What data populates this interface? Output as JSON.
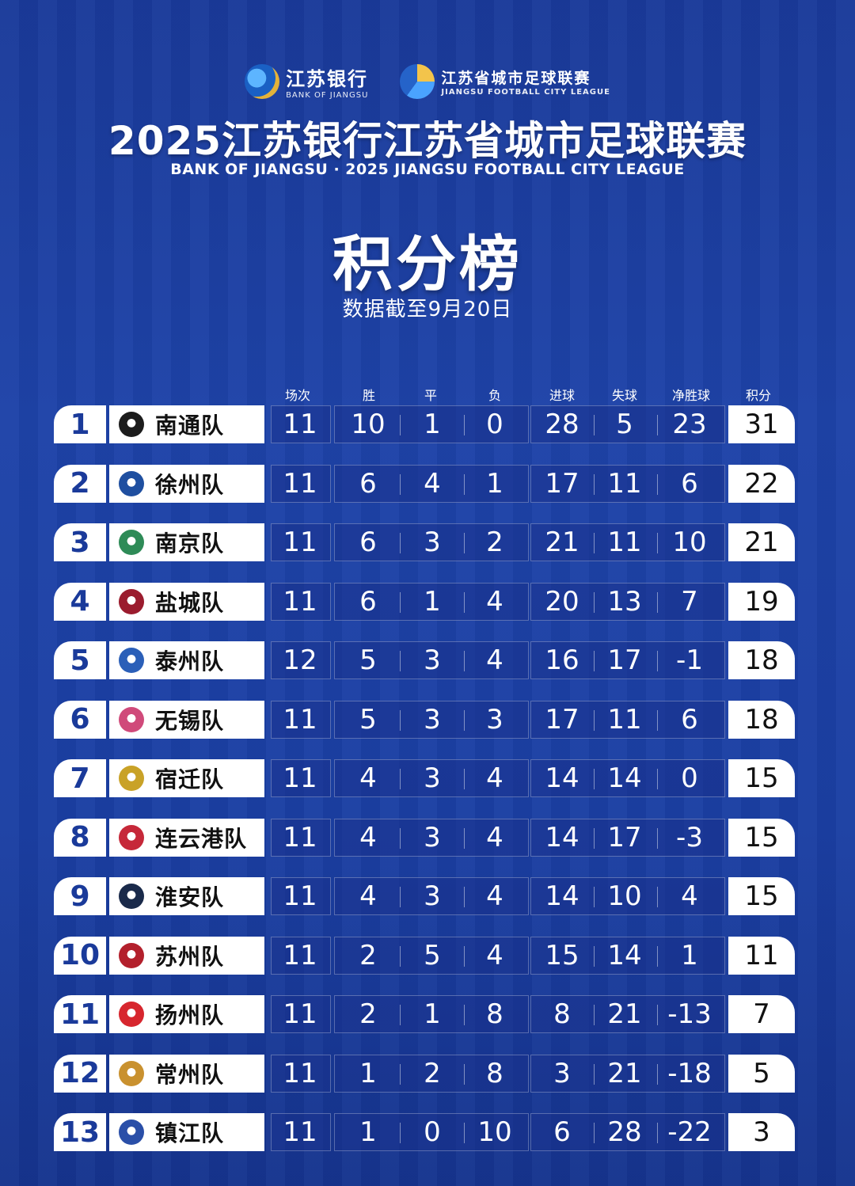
{
  "sponsor": {
    "cn": "江苏银行",
    "en": "BANK OF JIANGSU"
  },
  "league_logo": {
    "cn": "江苏省城市足球联赛",
    "en": "JIANGSU FOOTBALL CITY LEAGUE"
  },
  "title": "2025江苏银行江苏省城市足球联赛",
  "subtitle": "BANK OF JIANGSU · 2025 JIANGSU FOOTBALL CITY LEAGUE",
  "heading": "积分榜",
  "date_note": "数据截至9月20日",
  "columns": [
    "场次",
    "胜",
    "平",
    "负",
    "进球",
    "失球",
    "净胜球",
    "积分"
  ],
  "rows": [
    {
      "rank": "1",
      "team": "南通队",
      "played": "11",
      "won": "10",
      "drawn": "1",
      "lost": "0",
      "gf": "28",
      "ga": "5",
      "gd": "23",
      "pts": "31",
      "color": "#1c1c1c"
    },
    {
      "rank": "2",
      "team": "徐州队",
      "played": "11",
      "won": "6",
      "drawn": "4",
      "lost": "1",
      "gf": "17",
      "ga": "11",
      "gd": "6",
      "pts": "22",
      "color": "#1f4fa0"
    },
    {
      "rank": "3",
      "team": "南京队",
      "played": "11",
      "won": "6",
      "drawn": "3",
      "lost": "2",
      "gf": "21",
      "ga": "11",
      "gd": "10",
      "pts": "21",
      "color": "#2e8b57"
    },
    {
      "rank": "4",
      "team": "盐城队",
      "played": "11",
      "won": "6",
      "drawn": "1",
      "lost": "4",
      "gf": "20",
      "ga": "13",
      "gd": "7",
      "pts": "19",
      "color": "#9b1c2e"
    },
    {
      "rank": "5",
      "team": "泰州队",
      "played": "12",
      "won": "5",
      "drawn": "3",
      "lost": "4",
      "gf": "16",
      "ga": "17",
      "gd": "-1",
      "pts": "18",
      "color": "#2b5fb8"
    },
    {
      "rank": "6",
      "team": "无锡队",
      "played": "11",
      "won": "5",
      "drawn": "3",
      "lost": "3",
      "gf": "17",
      "ga": "11",
      "gd": "6",
      "pts": "18",
      "color": "#d04a7a"
    },
    {
      "rank": "7",
      "team": "宿迁队",
      "played": "11",
      "won": "4",
      "drawn": "3",
      "lost": "4",
      "gf": "14",
      "ga": "14",
      "gd": "0",
      "pts": "15",
      "color": "#c9a227"
    },
    {
      "rank": "8",
      "team": "连云港队",
      "played": "11",
      "won": "4",
      "drawn": "3",
      "lost": "4",
      "gf": "14",
      "ga": "17",
      "gd": "-3",
      "pts": "15",
      "color": "#c62839"
    },
    {
      "rank": "9",
      "team": "淮安队",
      "played": "11",
      "won": "4",
      "drawn": "3",
      "lost": "4",
      "gf": "14",
      "ga": "10",
      "gd": "4",
      "pts": "15",
      "color": "#1a2a4a"
    },
    {
      "rank": "10",
      "team": "苏州队",
      "played": "11",
      "won": "2",
      "drawn": "5",
      "lost": "4",
      "gf": "15",
      "ga": "14",
      "gd": "1",
      "pts": "11",
      "color": "#b3202c"
    },
    {
      "rank": "11",
      "team": "扬州队",
      "played": "11",
      "won": "2",
      "drawn": "1",
      "lost": "8",
      "gf": "8",
      "ga": "21",
      "gd": "-13",
      "pts": "7",
      "color": "#d7262e"
    },
    {
      "rank": "12",
      "team": "常州队",
      "played": "11",
      "won": "1",
      "drawn": "2",
      "lost": "8",
      "gf": "3",
      "ga": "21",
      "gd": "-18",
      "pts": "5",
      "color": "#c9912f"
    },
    {
      "rank": "13",
      "team": "镇江队",
      "played": "11",
      "won": "1",
      "drawn": "0",
      "lost": "10",
      "gf": "6",
      "ga": "28",
      "gd": "-22",
      "pts": "3",
      "color": "#2a4fa8"
    }
  ]
}
